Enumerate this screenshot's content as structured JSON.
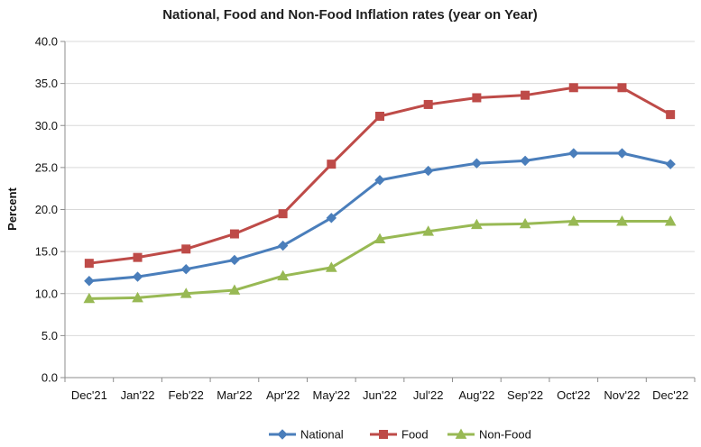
{
  "chart_data": {
    "type": "line",
    "title": "National, Food and Non-Food Inflation rates (year on Year)",
    "xlabel": "",
    "ylabel": "Percent",
    "ylim": [
      0,
      40
    ],
    "yticks": [
      "0.0",
      "5.0",
      "10.0",
      "15.0",
      "20.0",
      "25.0",
      "30.0",
      "35.0",
      "40.0"
    ],
    "grid": true,
    "legend_position": "bottom",
    "categories": [
      "Dec'21",
      "Jan'22",
      "Feb'22",
      "Mar'22",
      "Apr'22",
      "May'22",
      "Jun'22",
      "Jul'22",
      "Aug'22",
      "Sep'22",
      "Oct'22",
      "Nov'22",
      "Dec'22"
    ],
    "series": [
      {
        "name": "National",
        "color": "#4a7ebb",
        "marker": "diamond",
        "values": [
          11.5,
          12.0,
          12.9,
          14.0,
          15.7,
          19.0,
          23.5,
          24.6,
          25.5,
          25.8,
          26.7,
          26.7,
          25.4
        ]
      },
      {
        "name": "Food",
        "color": "#be4b48",
        "marker": "square",
        "values": [
          13.6,
          14.3,
          15.3,
          17.1,
          19.5,
          25.4,
          31.1,
          32.5,
          33.3,
          33.6,
          34.5,
          34.5,
          31.3
        ]
      },
      {
        "name": "Non-Food",
        "color": "#98b954",
        "marker": "triangle",
        "values": [
          9.4,
          9.5,
          10.0,
          10.4,
          12.1,
          13.1,
          16.5,
          17.4,
          18.2,
          18.3,
          18.6,
          18.6,
          18.6
        ]
      }
    ]
  }
}
